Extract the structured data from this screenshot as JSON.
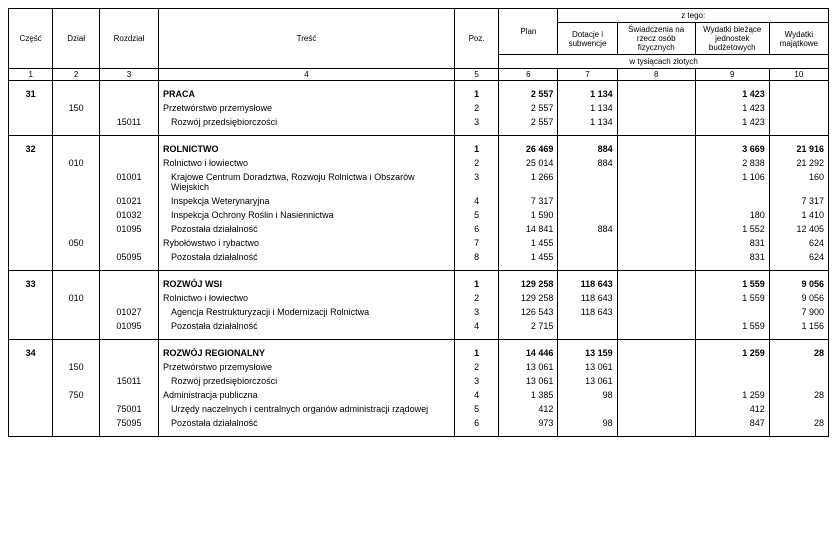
{
  "header": {
    "czesc": "Część",
    "dzial": "Dział",
    "rozdzial": "Rozdział",
    "tresc": "Treść",
    "poz": "Poz.",
    "plan": "Plan",
    "ztego": "z tego:",
    "c7": "Dotacje i subwencje",
    "c8": "Świadczenia na rzecz osób fizycznych",
    "c9": "Wydatki bieżące jednostek budżetowych",
    "c10": "Wydatki majątkowe",
    "unit": "w tysiącach złotych",
    "nums": {
      "n1": "1",
      "n2": "2",
      "n3": "3",
      "n4": "4",
      "n5": "5",
      "n6": "6",
      "n7": "7",
      "n8": "8",
      "n9": "9",
      "n10": "10"
    }
  },
  "s31": {
    "czesc": "31",
    "title": "PRACA",
    "r1": {
      "poz": "1",
      "plan": "2 557",
      "c7": "1 134",
      "c8": "",
      "c9": "1 423",
      "c10": ""
    },
    "r2": {
      "dzial": "150",
      "tresc": "Przetwórstwo przemysłowe",
      "poz": "2",
      "plan": "2 557",
      "c7": "1 134",
      "c8": "",
      "c9": "1 423",
      "c10": ""
    },
    "r3": {
      "rozdzial": "15011",
      "tresc": "Rozwój przedsiębiorczości",
      "poz": "3",
      "plan": "2 557",
      "c7": "1 134",
      "c8": "",
      "c9": "1 423",
      "c10": ""
    }
  },
  "s32": {
    "czesc": "32",
    "title": "ROLNICTWO",
    "r1": {
      "poz": "1",
      "plan": "26 469",
      "c7": "884",
      "c8": "",
      "c9": "3 669",
      "c10": "21 916"
    },
    "r2": {
      "dzial": "010",
      "tresc": "Rolnictwo i łowiectwo",
      "poz": "2",
      "plan": "25 014",
      "c7": "884",
      "c8": "",
      "c9": "2 838",
      "c10": "21 292"
    },
    "r3": {
      "rozdzial": "01001",
      "tresc": "Krajowe Centrum Doradztwa, Rozwoju Rolnictwa i Obszarów Wiejskich",
      "poz": "3",
      "plan": "1 266",
      "c7": "",
      "c8": "",
      "c9": "1 106",
      "c10": "160"
    },
    "r4": {
      "rozdzial": "01021",
      "tresc": "Inspekcja Weterynaryjna",
      "poz": "4",
      "plan": "7 317",
      "c7": "",
      "c8": "",
      "c9": "",
      "c10": "7 317"
    },
    "r5": {
      "rozdzial": "01032",
      "tresc": "Inspekcja Ochrony Roślin i Nasiennictwa",
      "poz": "5",
      "plan": "1 590",
      "c7": "",
      "c8": "",
      "c9": "180",
      "c10": "1 410"
    },
    "r6": {
      "rozdzial": "01095",
      "tresc": "Pozostała działalność",
      "poz": "6",
      "plan": "14 841",
      "c7": "884",
      "c8": "",
      "c9": "1 552",
      "c10": "12 405"
    },
    "r7": {
      "dzial": "050",
      "tresc": "Rybołówstwo i rybactwo",
      "poz": "7",
      "plan": "1 455",
      "c7": "",
      "c8": "",
      "c9": "831",
      "c10": "624"
    },
    "r8": {
      "rozdzial": "05095",
      "tresc": "Pozostała działalność",
      "poz": "8",
      "plan": "1 455",
      "c7": "",
      "c8": "",
      "c9": "831",
      "c10": "624"
    }
  },
  "s33": {
    "czesc": "33",
    "title": "ROZWÓJ WSI",
    "r1": {
      "poz": "1",
      "plan": "129 258",
      "c7": "118 643",
      "c8": "",
      "c9": "1 559",
      "c10": "9 056"
    },
    "r2": {
      "dzial": "010",
      "tresc": "Rolnictwo i łowiectwo",
      "poz": "2",
      "plan": "129 258",
      "c7": "118 643",
      "c8": "",
      "c9": "1 559",
      "c10": "9 056"
    },
    "r3": {
      "rozdzial": "01027",
      "tresc": "Agencja Restrukturyzacji i Modernizacji Rolnictwa",
      "poz": "3",
      "plan": "126 543",
      "c7": "118 643",
      "c8": "",
      "c9": "",
      "c10": "7 900"
    },
    "r4": {
      "rozdzial": "01095",
      "tresc": "Pozostała działalność",
      "poz": "4",
      "plan": "2 715",
      "c7": "",
      "c8": "",
      "c9": "1 559",
      "c10": "1 156"
    }
  },
  "s34": {
    "czesc": "34",
    "title": "ROZWÓJ REGIONALNY",
    "r1": {
      "poz": "1",
      "plan": "14 446",
      "c7": "13 159",
      "c8": "",
      "c9": "1 259",
      "c10": "28"
    },
    "r2": {
      "dzial": "150",
      "tresc": "Przetwórstwo przemysłowe",
      "poz": "2",
      "plan": "13 061",
      "c7": "13 061",
      "c8": "",
      "c9": "",
      "c10": ""
    },
    "r3": {
      "rozdzial": "15011",
      "tresc": "Rozwój przedsiębiorczości",
      "poz": "3",
      "plan": "13 061",
      "c7": "13 061",
      "c8": "",
      "c9": "",
      "c10": ""
    },
    "r4": {
      "dzial": "750",
      "tresc": "Administracja publiczna",
      "poz": "4",
      "plan": "1 385",
      "c7": "98",
      "c8": "",
      "c9": "1 259",
      "c10": "28"
    },
    "r5": {
      "rozdzial": "75001",
      "tresc": "Urzędy naczelnych i centralnych organów administracji rządowej",
      "poz": "5",
      "plan": "412",
      "c7": "",
      "c8": "",
      "c9": "412",
      "c10": ""
    },
    "r6": {
      "rozdzial": "75095",
      "tresc": "Pozostała działalność",
      "poz": "6",
      "plan": "973",
      "c7": "98",
      "c8": "",
      "c9": "847",
      "c10": "28"
    }
  }
}
